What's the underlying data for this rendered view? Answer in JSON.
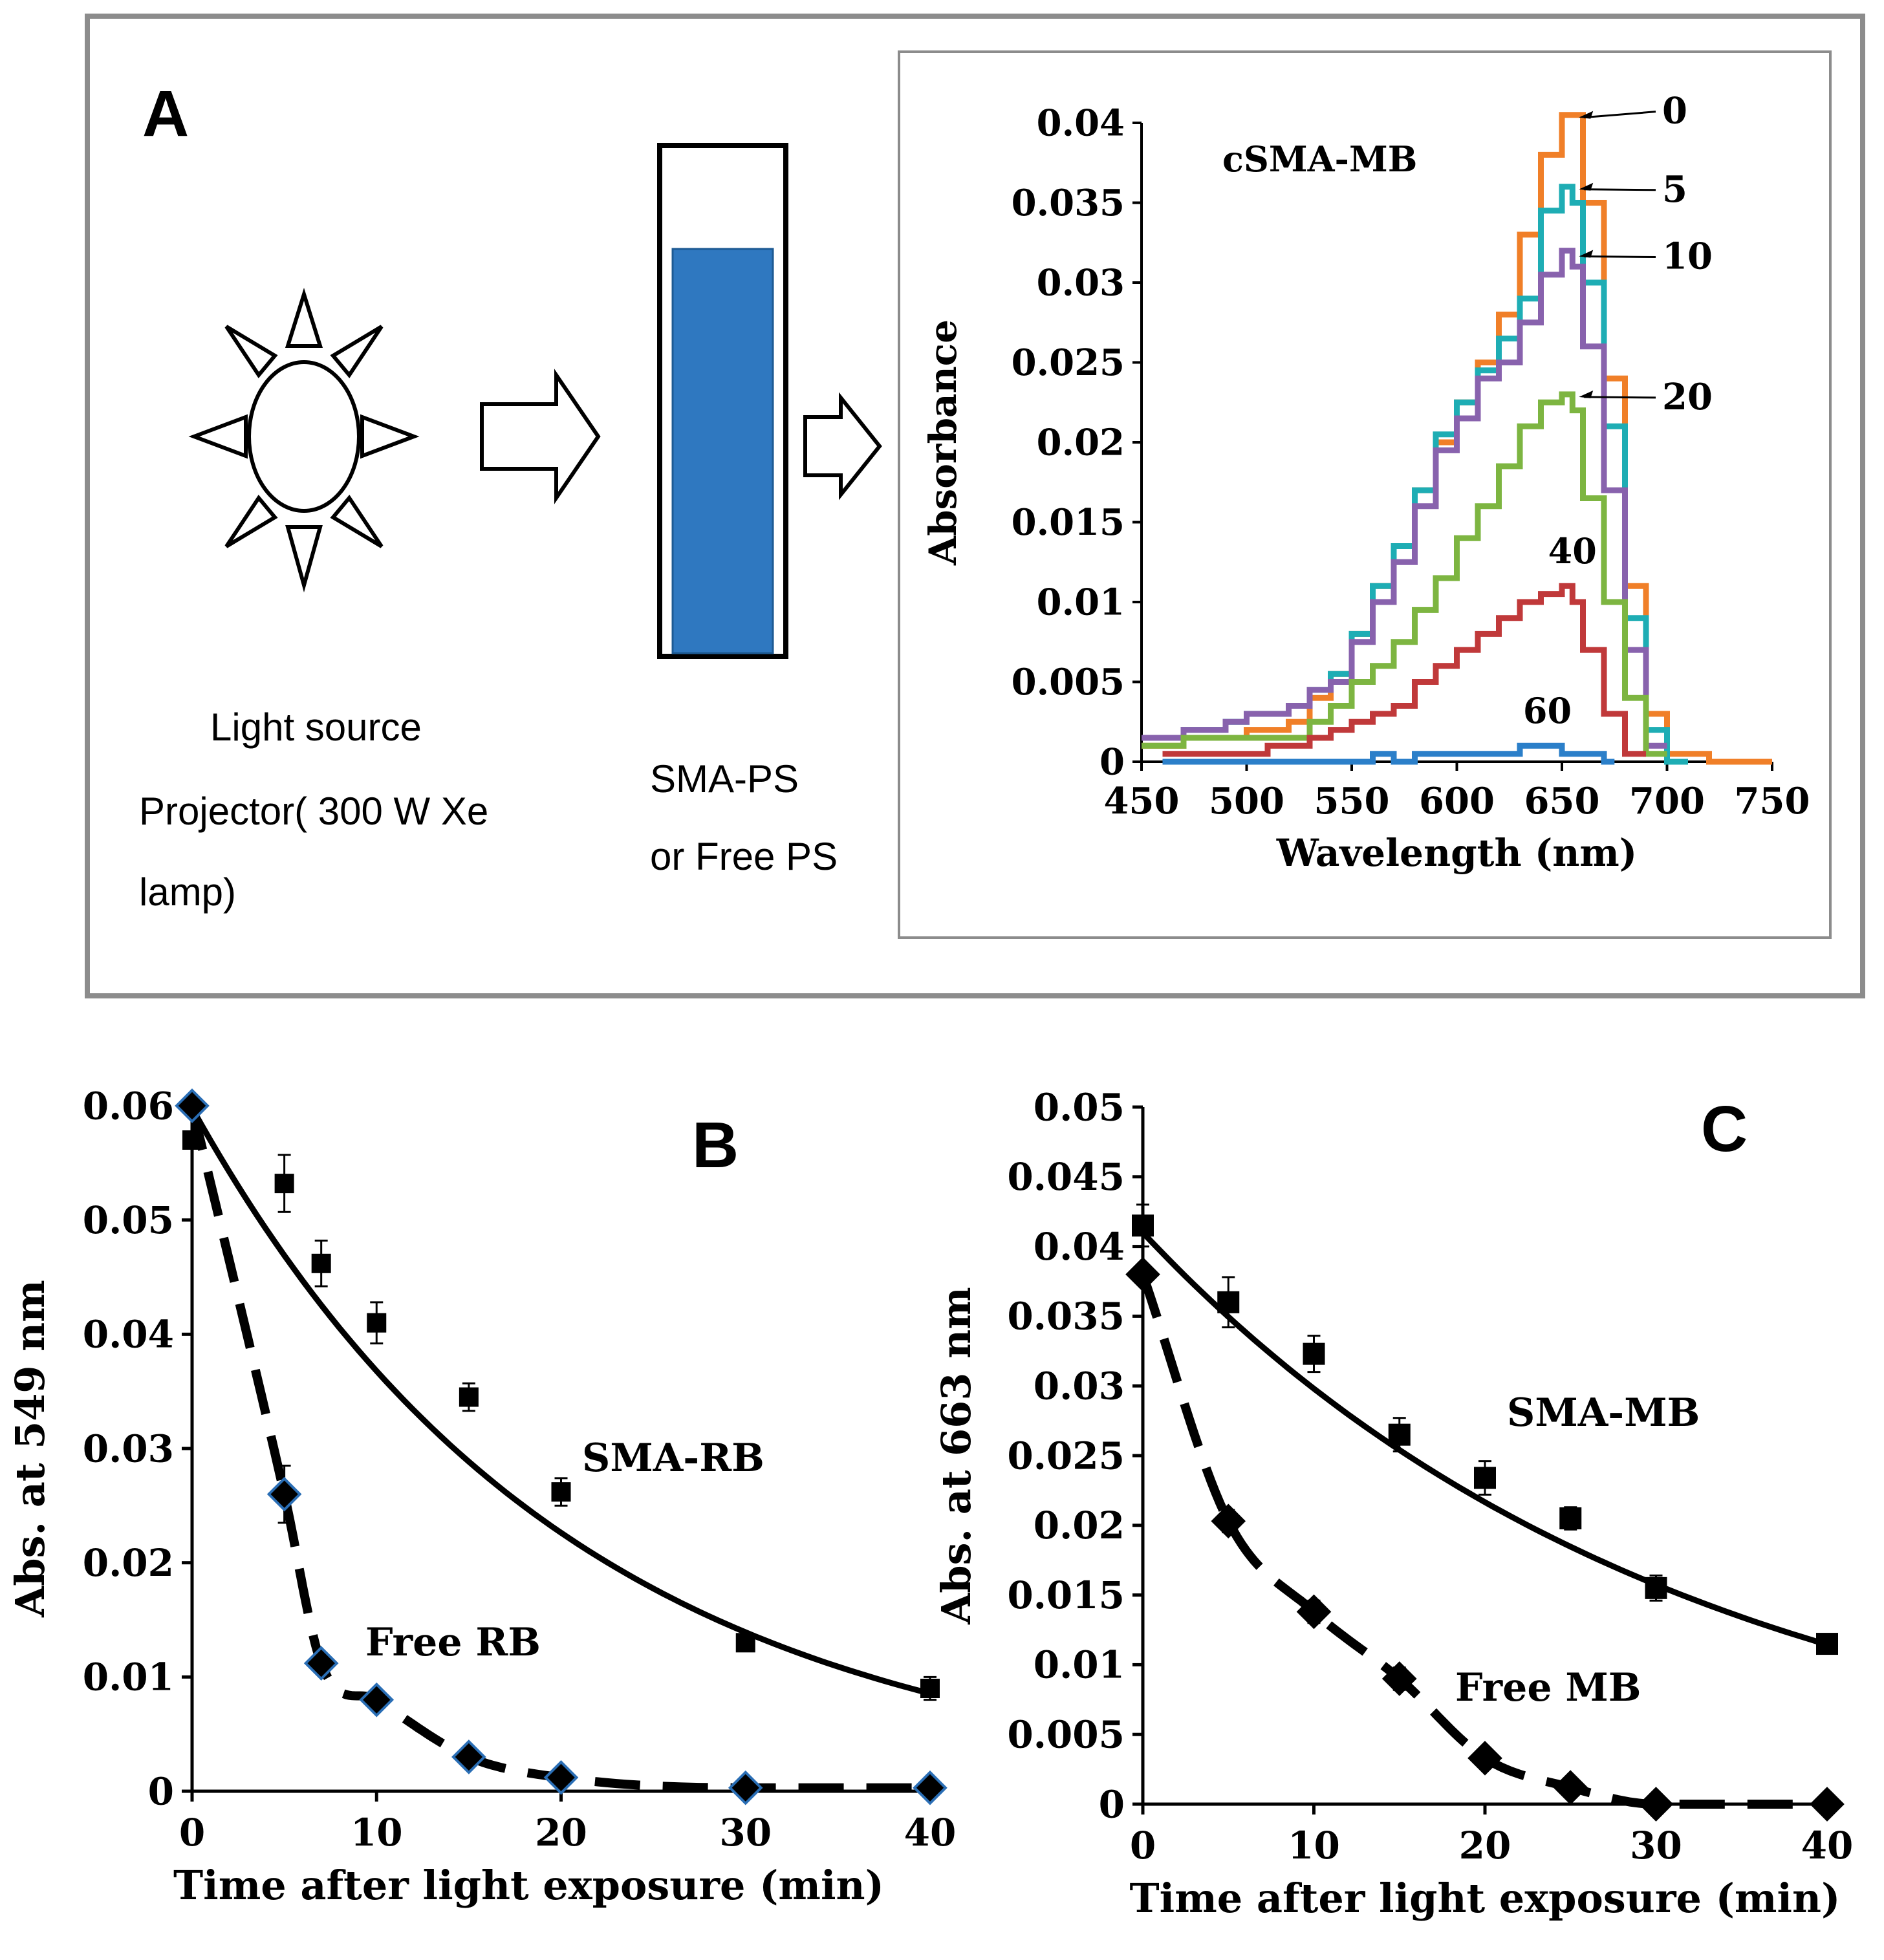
{
  "figure": {
    "panel_a": {
      "label": "A",
      "light_source_lines": [
        "Light source",
        "Projector( 300 W Xe",
        "lamp)"
      ],
      "cuvette_lines": [
        "SMA-PS",
        "or Free PS"
      ],
      "cuvette_fill_color": "#2f78c0"
    }
  },
  "chart_data": [
    {
      "panel": "A",
      "type": "line",
      "title": "cSMA-MB",
      "xlabel": "Wavelength (nm)",
      "ylabel": "Absorbance",
      "xlim": [
        450,
        750
      ],
      "ylim": [
        0,
        0.04
      ],
      "xticks": [
        "450",
        "500",
        "550",
        "600",
        "650",
        "700",
        "750"
      ],
      "yticks": [
        "0",
        "0.005",
        "0.01",
        "0.015",
        "0.02",
        "0.025",
        "0.03",
        "0.035",
        "0.04"
      ],
      "legend_position": "right of curve peaks (arrow labels)",
      "series": [
        {
          "name": "0",
          "color": "#f07f28",
          "label_style": "arrow",
          "x": [
            450,
            470,
            500,
            530,
            550,
            580,
            600,
            620,
            630,
            640,
            650,
            655,
            660,
            670,
            680,
            690,
            700,
            710,
            750
          ],
          "y": [
            0.0008,
            0.0012,
            0.0015,
            0.0025,
            0.0055,
            0.0135,
            0.02,
            0.025,
            0.028,
            0.033,
            0.038,
            0.0405,
            0.0405,
            0.035,
            0.024,
            0.011,
            0.003,
            0.0003,
            0.0001
          ]
        },
        {
          "name": "5",
          "color": "#1eadb4",
          "label_style": "arrow",
          "x": [
            450,
            470,
            500,
            530,
            550,
            580,
            600,
            620,
            630,
            640,
            650,
            655,
            660,
            670,
            680,
            690,
            700,
            710
          ],
          "y": [
            0.0017,
            0.0017,
            0.0025,
            0.0035,
            0.0055,
            0.0135,
            0.0205,
            0.0245,
            0.0265,
            0.029,
            0.0345,
            0.036,
            0.035,
            0.03,
            0.021,
            0.009,
            0.002,
            0.0002
          ]
        },
        {
          "name": "10",
          "color": "#8862ad",
          "label_style": "arrow",
          "x": [
            450,
            470,
            500,
            530,
            550,
            580,
            600,
            620,
            630,
            640,
            650,
            655,
            660,
            670,
            680,
            690,
            700
          ],
          "y": [
            0.0015,
            0.0015,
            0.0025,
            0.0035,
            0.005,
            0.0125,
            0.0195,
            0.024,
            0.025,
            0.0275,
            0.0305,
            0.0318,
            0.031,
            0.026,
            0.017,
            0.007,
            0.001
          ]
        },
        {
          "name": "20",
          "color": "#7db541",
          "label_style": "arrow",
          "x": [
            450,
            470,
            500,
            530,
            550,
            580,
            600,
            620,
            630,
            640,
            650,
            655,
            660,
            670,
            680,
            690,
            700
          ],
          "y": [
            0.0012,
            0.0012,
            0.0015,
            0.0015,
            0.0035,
            0.0075,
            0.0115,
            0.016,
            0.0185,
            0.021,
            0.0225,
            0.023,
            0.022,
            0.0165,
            0.01,
            0.004,
            0.0003
          ]
        },
        {
          "name": "40",
          "color": "#c0393a",
          "label_style": "text",
          "x": [
            460,
            480,
            500,
            530,
            550,
            580,
            600,
            620,
            640,
            650,
            655,
            660,
            670,
            680,
            690
          ],
          "y": [
            0.0003,
            0.0003,
            0.0005,
            0.001,
            0.0018,
            0.0035,
            0.006,
            0.008,
            0.0098,
            0.0105,
            0.0108,
            0.0102,
            0.007,
            0.003,
            0.0005
          ]
        },
        {
          "name": "60",
          "color": "#2b7fc9",
          "label_style": "text",
          "x": [
            460,
            500,
            560,
            570,
            580,
            600,
            620,
            640,
            650,
            660,
            670,
            675
          ],
          "y": [
            0.0001,
            0.0001,
            0.0001,
            0.0006,
            0.0002,
            0.0004,
            0.0006,
            0.0008,
            0.0008,
            0.0007,
            0.0004,
            0.0002
          ]
        }
      ]
    },
    {
      "panel": "B",
      "type": "scatter",
      "xlabel": "Time  after light exposure (min)",
      "ylabel": "Abs. at 549 nm",
      "xlim": [
        0,
        40
      ],
      "ylim": [
        0,
        0.06
      ],
      "xticks": [
        "0",
        "10",
        "20",
        "30",
        "40"
      ],
      "yticks": [
        "0",
        "0.01",
        "0.02",
        "0.03",
        "0.04",
        "0.05",
        "0.06"
      ],
      "series": [
        {
          "name": "SMA-RB",
          "marker": "square",
          "line": "solid",
          "x": [
            0,
            5,
            7,
            10,
            15,
            20,
            30,
            40
          ],
          "y": [
            0.057,
            0.0532,
            0.0462,
            0.041,
            0.0345,
            0.0262,
            0.013,
            0.009
          ],
          "err": [
            0,
            0.0025,
            0.002,
            0.0018,
            0.0012,
            0.0012,
            0,
            0.001
          ],
          "fit_y0": 0.0598,
          "fit_k": 0.0486
        },
        {
          "name": "Free RB",
          "marker": "diamond",
          "line": "dashed",
          "x": [
            0,
            5,
            7,
            10,
            15,
            20,
            30,
            40
          ],
          "y": [
            0.06,
            0.026,
            0.0112,
            0.008,
            0.003,
            0.0012,
            0.0003,
            0.0003
          ],
          "err": [
            0,
            0.0025,
            0,
            0,
            0,
            0,
            0,
            0
          ]
        }
      ]
    },
    {
      "panel": "C",
      "type": "scatter",
      "xlabel": "Time after light exposure (min)",
      "ylabel": "Abs. at 663 nm",
      "xlim": [
        0,
        40
      ],
      "ylim": [
        0,
        0.05
      ],
      "xticks": [
        "0",
        "10",
        "20",
        "30",
        "40"
      ],
      "yticks": [
        "0",
        "0.005",
        "0.01",
        "0.015",
        "0.02",
        "0.025",
        "0.03",
        "0.035",
        "0.04",
        "0.045",
        "0.05"
      ],
      "series": [
        {
          "name": "SMA-MB",
          "marker": "square",
          "line": "solid",
          "x": [
            0,
            5,
            10,
            15,
            20,
            25,
            30,
            40
          ],
          "y": [
            0.0415,
            0.036,
            0.0323,
            0.0265,
            0.0234,
            0.0205,
            0.0155,
            0.0115
          ],
          "err": [
            0.0015,
            0.0018,
            0.0013,
            0.0012,
            0.0012,
            0.0008,
            0.0009,
            0.0005
          ],
          "fit_y0": 0.041,
          "fit_k": 0.0319
        },
        {
          "name": "Free MB",
          "marker": "diamond",
          "line": "dashed",
          "x": [
            0,
            5,
            10,
            15,
            20,
            25,
            30,
            40
          ],
          "y": [
            0.038,
            0.0203,
            0.0138,
            0.009,
            0.0033,
            0.0012,
            0.0,
            0.0
          ],
          "err": [
            0,
            0.0008,
            0.0008,
            0.0008,
            0,
            0,
            0,
            0
          ]
        }
      ]
    }
  ]
}
